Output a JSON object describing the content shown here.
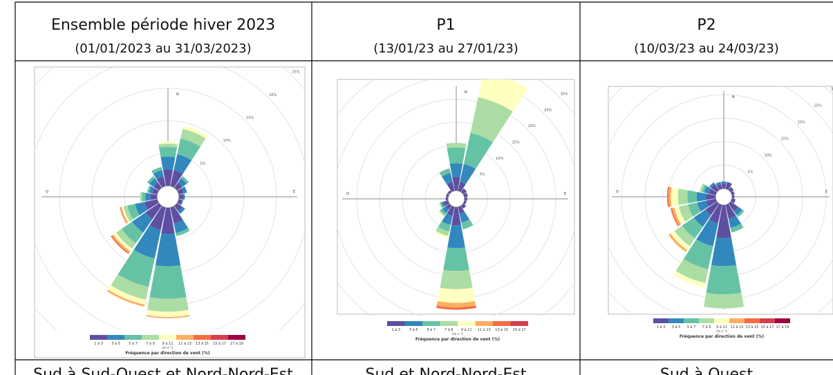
{
  "header": [
    "Ensemble période hiver 2023",
    "P1",
    "P2"
  ],
  "subheader": [
    "(01/01/2023 au 31/03/2023)",
    "(13/01/23 au 27/01/23)",
    "(10/03/23 au 24/03/23)"
  ],
  "footer": [
    "Sud à Sud-Ouest et Nord-Nord-Est",
    "Sud et Nord-Nord-Est",
    "Sud à Ouest"
  ],
  "speed_colors": [
    "#5e4fa2",
    "#3288bd",
    "#66c2a5",
    "#abdda4",
    "#ffffbf",
    "#fdae61",
    "#f46d43",
    "#d53e4f",
    "#9e0142"
  ],
  "roses": [
    {
      "compass": [
        "N",
        "E",
        "S",
        "O"
      ],
      "rings": [
        {
          "value": 5,
          "label": "5%"
        },
        {
          "value": 10,
          "label": "10%"
        },
        {
          "value": 15,
          "label": "15%"
        },
        {
          "value": 20,
          "label": "20%"
        },
        {
          "value": 25,
          "label": "25%"
        }
      ],
      "legend_labels": [
        "1 à 3",
        "3 à 5",
        "5 à 7",
        "7 à 9",
        "9 à 11",
        "11 à 13",
        "13 à 15",
        "15 à 17",
        "17 à 19"
      ],
      "unit": "(m s⁻¹)",
      "legend_title": "Fréquence par direction de vent (%)",
      "directions": [
        [
          2.5,
          2,
          1.5,
          0.5,
          0.3
        ],
        [
          2.5,
          2.5,
          2.5,
          1.5,
          0.5
        ],
        [
          1,
          0.8,
          0.4
        ],
        [
          0.8,
          0.5
        ],
        [
          0.6,
          0.3
        ],
        [
          0.5,
          0.2
        ],
        [
          1,
          0.5
        ],
        [
          2.5,
          1.5,
          0.5
        ],
        [
          4,
          5,
          5,
          2,
          0.8,
          0.2
        ],
        [
          3.5,
          4.5,
          4.5,
          2,
          0.8,
          0.3
        ],
        [
          2.5,
          2.5,
          2,
          1,
          0.5,
          0.3,
          0.2
        ],
        [
          2,
          1.5,
          1.2,
          0.6,
          0.3,
          0.2,
          0.1
        ],
        [
          1,
          0.8,
          0.5,
          0.3
        ],
        [
          0.8,
          0.5,
          0.3
        ],
        [
          1,
          0.8,
          0.4
        ],
        [
          1.5,
          1,
          0.5
        ]
      ]
    },
    {
      "compass": [
        "N",
        "E",
        "S",
        "O"
      ],
      "rings": [
        {
          "value": 5,
          "label": "5%"
        },
        {
          "value": 10,
          "label": "10%"
        },
        {
          "value": 15,
          "label": "15%"
        },
        {
          "value": 20,
          "label": "20%"
        },
        {
          "value": 25,
          "label": "25%"
        },
        {
          "value": 30,
          "label": "30%"
        }
      ],
      "legend_labels": [
        "1 à 3",
        "3 à 5",
        "5 à 7",
        "7 à 9",
        "9 à 11",
        "11 à 13",
        "13 à 15",
        "15 à 17"
      ],
      "unit": "(m s⁻¹)",
      "legend_title": "Fréquence par direction de vent (%)",
      "directions": [
        [
          3,
          3,
          3.5,
          1
        ],
        [
          2,
          4,
          7,
          8,
          6
        ],
        [
          1
        ],
        [
          0.8
        ],
        [
          0.6
        ],
        [
          0.5
        ],
        [
          0.8
        ],
        [
          1.5,
          2,
          1.5
        ],
        [
          4,
          5,
          5,
          4,
          3,
          1,
          0.5
        ],
        [
          2,
          2,
          1.5,
          1,
          0.5
        ],
        [
          1,
          1,
          0.5,
          0.3,
          0.3
        ],
        [
          1,
          0.5,
          0.3,
          0.2
        ],
        [
          0.5
        ],
        [
          0.5
        ],
        [
          0.5
        ],
        [
          2,
          2,
          1
        ]
      ]
    },
    {
      "compass": [
        "N",
        "E",
        "S",
        "O"
      ],
      "rings": [
        {
          "value": 5,
          "label": "5%"
        },
        {
          "value": 10,
          "label": "10%"
        },
        {
          "value": 15,
          "label": "15%"
        },
        {
          "value": 20,
          "label": "20%"
        },
        {
          "value": 25,
          "label": "25%"
        },
        {
          "value": 30,
          "label": "30%"
        }
      ],
      "legend_labels": [
        "1 à 3",
        "3 à 5",
        "5 à 7",
        "7 à 9",
        "9 à 11",
        "11 à 13",
        "13 à 15",
        "15 à 17",
        "17 à 19"
      ],
      "unit": "(m s⁻¹)",
      "legend_title": "Fréquence par direction de vent (%)",
      "directions": [
        [
          1,
          0.5
        ],
        [
          1.5
        ],
        [
          0.8
        ],
        [
          0.6
        ],
        [
          0.5
        ],
        [
          0.8
        ],
        [
          2,
          1,
          0.5
        ],
        [
          3,
          2,
          1
        ],
        [
          7,
          6,
          6,
          3
        ],
        [
          4,
          5,
          5,
          3,
          1
        ],
        [
          3,
          3,
          3,
          2,
          1,
          0.5
        ],
        [
          2,
          2,
          2,
          2,
          1,
          0.5,
          0.3
        ],
        [
          2,
          2,
          2,
          2,
          1.5,
          0.5,
          0.3
        ],
        [
          1.5,
          1,
          0.5,
          0.5
        ],
        [
          1.5,
          0.5
        ],
        [
          1,
          0.5
        ]
      ]
    }
  ]
}
